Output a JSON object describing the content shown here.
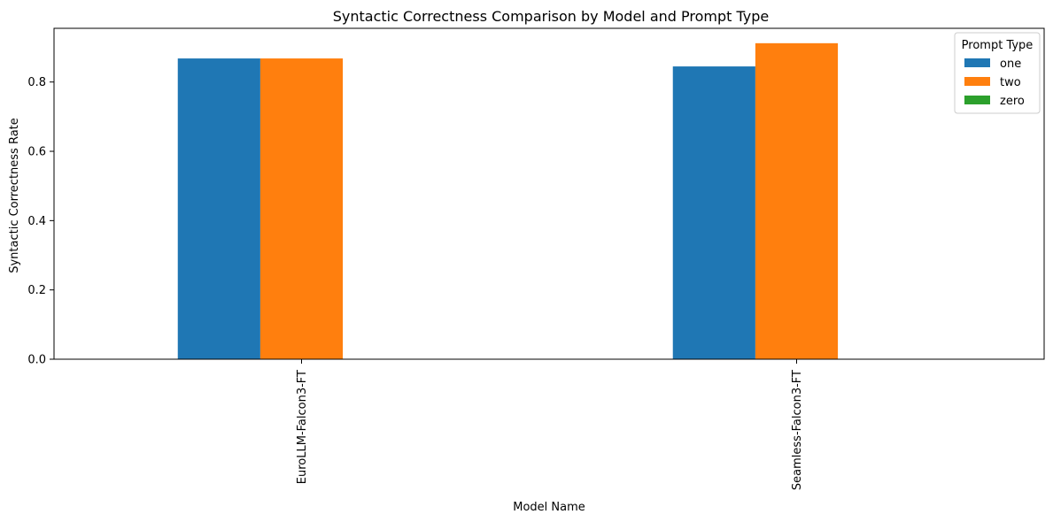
{
  "chart_data": {
    "type": "bar",
    "title": "Syntactic Correctness Comparison by Model and Prompt Type",
    "xlabel": "Model Name",
    "ylabel": "Syntactic Correctness Rate",
    "ylim": [
      0,
      0.955
    ],
    "yticks": [
      0.0,
      0.2,
      0.4,
      0.6,
      0.8
    ],
    "ytick_labels": [
      "0.0",
      "0.2",
      "0.4",
      "0.6",
      "0.8"
    ],
    "categories": [
      "EuroLLM-Falcon3-FT",
      "Seamless-Falcon3-FT"
    ],
    "series": [
      {
        "name": "one",
        "color": "#1f77b4",
        "values": [
          0.868,
          0.845
        ]
      },
      {
        "name": "two",
        "color": "#ff7f0e",
        "values": [
          0.868,
          0.912
        ]
      },
      {
        "name": "zero",
        "color": "#2ca02c",
        "values": [
          null,
          null
        ]
      }
    ],
    "legend": {
      "title": "Prompt Type",
      "position": "upper-right"
    },
    "grid": false
  }
}
